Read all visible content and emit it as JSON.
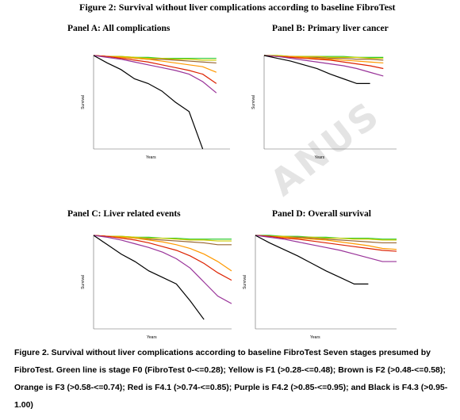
{
  "header": {
    "title": "Figure 2: Survival without liver complications according to baseline FibroTest"
  },
  "watermark": "ANUS",
  "chart_data": [
    {
      "type": "line",
      "title": "Panel A: All complications",
      "xlabel": "Years",
      "ylabel": "Survival",
      "xlim": [
        0,
        10
      ],
      "ylim": [
        0,
        100
      ],
      "x": [
        0,
        1,
        2,
        3,
        4,
        5,
        6,
        7,
        8,
        9,
        10
      ],
      "series": [
        {
          "name": "F0",
          "color": "#33cc33",
          "values": [
            100,
            99,
            99,
            98,
            98,
            97,
            97,
            97,
            97,
            97,
            null
          ]
        },
        {
          "name": "F1",
          "color": "#cccc00",
          "values": [
            100,
            99,
            99,
            98,
            97,
            97,
            96,
            96,
            95,
            95,
            null
          ]
        },
        {
          "name": "F2",
          "color": "#996633",
          "values": [
            100,
            99,
            98,
            97,
            96,
            96,
            95,
            94,
            93,
            92,
            null
          ]
        },
        {
          "name": "F3",
          "color": "#ff9900",
          "values": [
            100,
            99,
            98,
            97,
            96,
            94,
            92,
            90,
            88,
            82,
            null
          ]
        },
        {
          "name": "F4.1",
          "color": "#dd2200",
          "values": [
            100,
            99,
            97,
            95,
            93,
            90,
            87,
            84,
            80,
            70,
            null
          ]
        },
        {
          "name": "F4.2",
          "color": "#993399",
          "values": [
            100,
            98,
            96,
            93,
            90,
            87,
            84,
            80,
            72,
            60,
            null
          ]
        },
        {
          "name": "F4.3",
          "color": "#000000",
          "values": [
            100,
            92,
            85,
            75,
            70,
            62,
            50,
            40,
            0,
            null,
            null
          ]
        }
      ]
    },
    {
      "type": "line",
      "title": "Panel B: Primary liver cancer",
      "xlabel": "Years",
      "ylabel": "Survival",
      "xlim": [
        0,
        10
      ],
      "ylim": [
        0,
        100
      ],
      "x": [
        0,
        1,
        2,
        3,
        4,
        5,
        6,
        7,
        8,
        9,
        10
      ],
      "series": [
        {
          "name": "F0",
          "color": "#33cc33",
          "values": [
            100,
            100,
            99,
            99,
            99,
            99,
            99,
            98,
            98,
            98,
            null
          ]
        },
        {
          "name": "F1",
          "color": "#cccc00",
          "values": [
            100,
            100,
            99,
            99,
            99,
            98,
            98,
            98,
            97,
            97,
            null
          ]
        },
        {
          "name": "F2",
          "color": "#996633",
          "values": [
            100,
            99,
            99,
            98,
            98,
            97,
            97,
            96,
            96,
            95,
            null
          ]
        },
        {
          "name": "F3",
          "color": "#ff9900",
          "values": [
            100,
            99,
            99,
            98,
            97,
            96,
            95,
            94,
            93,
            92,
            null
          ]
        },
        {
          "name": "F4.1",
          "color": "#dd2200",
          "values": [
            100,
            99,
            98,
            97,
            96,
            95,
            93,
            91,
            89,
            86,
            null
          ]
        },
        {
          "name": "F4.2",
          "color": "#993399",
          "values": [
            100,
            99,
            97,
            95,
            93,
            91,
            89,
            86,
            82,
            78,
            null
          ]
        },
        {
          "name": "F4.3",
          "color": "#000000",
          "values": [
            100,
            97,
            94,
            90,
            86,
            80,
            75,
            70,
            70,
            null,
            null
          ]
        }
      ]
    },
    {
      "type": "line",
      "title": "Panel C: Liver related events",
      "xlabel": "Years",
      "ylabel": "Survival",
      "xlim": [
        0,
        10
      ],
      "ylim": [
        0,
        100
      ],
      "x": [
        0,
        1,
        2,
        3,
        4,
        5,
        6,
        7,
        8,
        9,
        10
      ],
      "series": [
        {
          "name": "F0",
          "color": "#33cc33",
          "values": [
            100,
            99,
            99,
            98,
            98,
            97,
            97,
            96,
            96,
            96,
            96
          ]
        },
        {
          "name": "F1",
          "color": "#cccc00",
          "values": [
            100,
            99,
            99,
            98,
            97,
            97,
            96,
            95,
            95,
            94,
            94
          ]
        },
        {
          "name": "F2",
          "color": "#996633",
          "values": [
            100,
            99,
            98,
            97,
            96,
            95,
            94,
            93,
            92,
            90,
            90
          ]
        },
        {
          "name": "F3",
          "color": "#ff9900",
          "values": [
            100,
            99,
            98,
            97,
            95,
            93,
            90,
            86,
            80,
            72,
            62
          ]
        },
        {
          "name": "F4.1",
          "color": "#dd2200",
          "values": [
            100,
            99,
            97,
            95,
            92,
            88,
            84,
            78,
            70,
            60,
            52
          ]
        },
        {
          "name": "F4.2",
          "color": "#993399",
          "values": [
            100,
            98,
            95,
            91,
            87,
            82,
            75,
            65,
            50,
            35,
            27
          ]
        },
        {
          "name": "F4.3",
          "color": "#000000",
          "values": [
            100,
            90,
            80,
            72,
            62,
            55,
            48,
            30,
            10,
            null,
            null
          ]
        }
      ]
    },
    {
      "type": "line",
      "title": "Panel D: Overall survival",
      "xlabel": "Years",
      "ylabel": "Survival",
      "xlim": [
        0,
        10
      ],
      "ylim": [
        0,
        100
      ],
      "x": [
        0,
        1,
        2,
        3,
        4,
        5,
        6,
        7,
        8,
        9,
        10
      ],
      "series": [
        {
          "name": "F0",
          "color": "#33cc33",
          "values": [
            100,
            100,
            99,
            99,
            98,
            98,
            97,
            97,
            97,
            96,
            96
          ]
        },
        {
          "name": "F1",
          "color": "#cccc00",
          "values": [
            100,
            99,
            99,
            98,
            98,
            97,
            97,
            96,
            96,
            95,
            95
          ]
        },
        {
          "name": "F2",
          "color": "#996633",
          "values": [
            100,
            99,
            98,
            98,
            97,
            96,
            95,
            94,
            93,
            92,
            92
          ]
        },
        {
          "name": "F3",
          "color": "#ff9900",
          "values": [
            100,
            99,
            98,
            97,
            96,
            95,
            93,
            91,
            89,
            86,
            85
          ]
        },
        {
          "name": "F4.1",
          "color": "#dd2200",
          "values": [
            100,
            99,
            97,
            96,
            94,
            92,
            90,
            88,
            86,
            84,
            83
          ]
        },
        {
          "name": "F4.2",
          "color": "#993399",
          "values": [
            100,
            98,
            96,
            93,
            90,
            87,
            84,
            80,
            76,
            72,
            72
          ]
        },
        {
          "name": "F4.3",
          "color": "#000000",
          "values": [
            100,
            92,
            85,
            78,
            70,
            62,
            55,
            48,
            48,
            null,
            null
          ]
        }
      ]
    }
  ],
  "caption": "Figure 2. Survival without liver complications according to baseline FibroTest Seven stages presumed by FibroTest. Green line is stage F0 (FibroTest 0-<=0.28); Yellow is F1 (>0.28-<=0.48); Brown is F2 (>0.48-<=0.58); Orange is F3 (>0.58-<=0.74); Red is F4.1 (>0.74-<=0.85); Purple is F4.2 (>0.85-<=0.95); and Black is F4.3 (>0.95-1.00)"
}
